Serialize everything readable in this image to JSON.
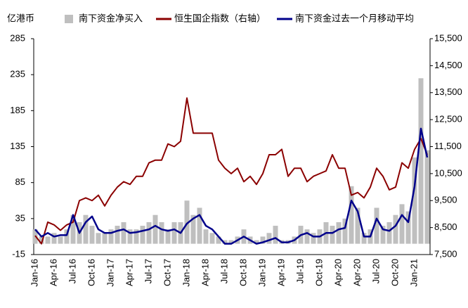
{
  "chart_data": {
    "type": "bar",
    "y_unit_label": "亿港币",
    "categories": [
      "Jan-16",
      null,
      null,
      "Apr-16",
      null,
      null,
      "Jul-16",
      null,
      null,
      "Oct-16",
      null,
      null,
      "Jan-17",
      null,
      null,
      "Apr-17",
      null,
      null,
      "Jul-17",
      null,
      null,
      "Oct-17",
      null,
      null,
      "Jan-18",
      null,
      null,
      "Apr-18",
      null,
      null,
      "Jul-18",
      null,
      null,
      "Oct-18",
      null,
      null,
      "Jan-19",
      null,
      null,
      "Apr-19",
      null,
      null,
      "Jul-19",
      null,
      null,
      "Oct-19",
      null,
      null,
      "Apr-20",
      null,
      null,
      "Apr-20",
      null,
      null,
      "Jul-20",
      null,
      null,
      "Oct-20",
      null,
      null,
      "Jan-21",
      null,
      null
    ],
    "series": [
      {
        "name": "南下资金净买入",
        "type": "bar",
        "color": "#bfbfbf",
        "values": [
          20,
          10,
          10,
          15,
          10,
          20,
          40,
          30,
          40,
          25,
          15,
          15,
          20,
          25,
          30,
          20,
          20,
          25,
          30,
          40,
          30,
          20,
          30,
          30,
          60,
          40,
          50,
          20,
          15,
          10,
          5,
          5,
          10,
          20,
          10,
          5,
          10,
          15,
          25,
          5,
          5,
          10,
          25,
          20,
          15,
          20,
          30,
          25,
          30,
          35,
          80,
          50,
          15,
          20,
          50,
          25,
          30,
          40,
          55,
          45,
          120,
          230,
          130
        ]
      },
      {
        "name": "恒生国企指数（右轴）",
        "type": "line",
        "axis": "y2",
        "color": "#8b0000",
        "values": [
          8200,
          7900,
          8700,
          8600,
          8400,
          8600,
          8700,
          9500,
          9600,
          9500,
          9700,
          9300,
          9700,
          10000,
          10200,
          10100,
          10400,
          10400,
          10900,
          11000,
          11000,
          11600,
          11500,
          11700,
          13300,
          12000,
          12000,
          12000,
          12000,
          11000,
          10700,
          10500,
          10700,
          10200,
          10400,
          10100,
          10500,
          11200,
          11200,
          11400,
          10400,
          10700,
          10700,
          10200,
          10400,
          10500,
          10600,
          11200,
          10700,
          10700,
          9700,
          9800,
          9600,
          10000,
          10700,
          10400,
          9900,
          10000,
          10900,
          10700,
          11400,
          11800,
          11200
        ]
      },
      {
        "name": "南下资金过去一个月移动平均",
        "type": "line",
        "color": "#00008b",
        "values": [
          20,
          10,
          15,
          10,
          12,
          12,
          40,
          15,
          30,
          38,
          20,
          15,
          15,
          18,
          20,
          15,
          16,
          18,
          20,
          25,
          20,
          18,
          20,
          15,
          28,
          35,
          40,
          25,
          20,
          10,
          0,
          0,
          5,
          10,
          5,
          0,
          2,
          5,
          8,
          2,
          2,
          5,
          12,
          15,
          10,
          10,
          15,
          15,
          20,
          22,
          60,
          45,
          10,
          10,
          35,
          20,
          18,
          25,
          40,
          30,
          80,
          160,
          120
        ]
      }
    ],
    "ylim": [
      -15,
      285
    ],
    "yticks": [
      -15,
      35,
      85,
      135,
      185,
      235,
      285
    ],
    "y2lim": [
      7500,
      15500
    ],
    "y2ticks": [
      {
        "value": 7500,
        "label": "7,500"
      },
      {
        "value": 8500,
        "label": "8,500"
      },
      {
        "value": 9500,
        "label": "9,500"
      },
      {
        "value": 10500,
        "label": "10,500"
      },
      {
        "value": 11500,
        "label": "11,500"
      },
      {
        "value": 12500,
        "label": "12,500"
      },
      {
        "value": 13500,
        "label": "13,500"
      },
      {
        "value": 14500,
        "label": "14,500"
      },
      {
        "value": 15500,
        "label": "15,500"
      }
    ]
  }
}
